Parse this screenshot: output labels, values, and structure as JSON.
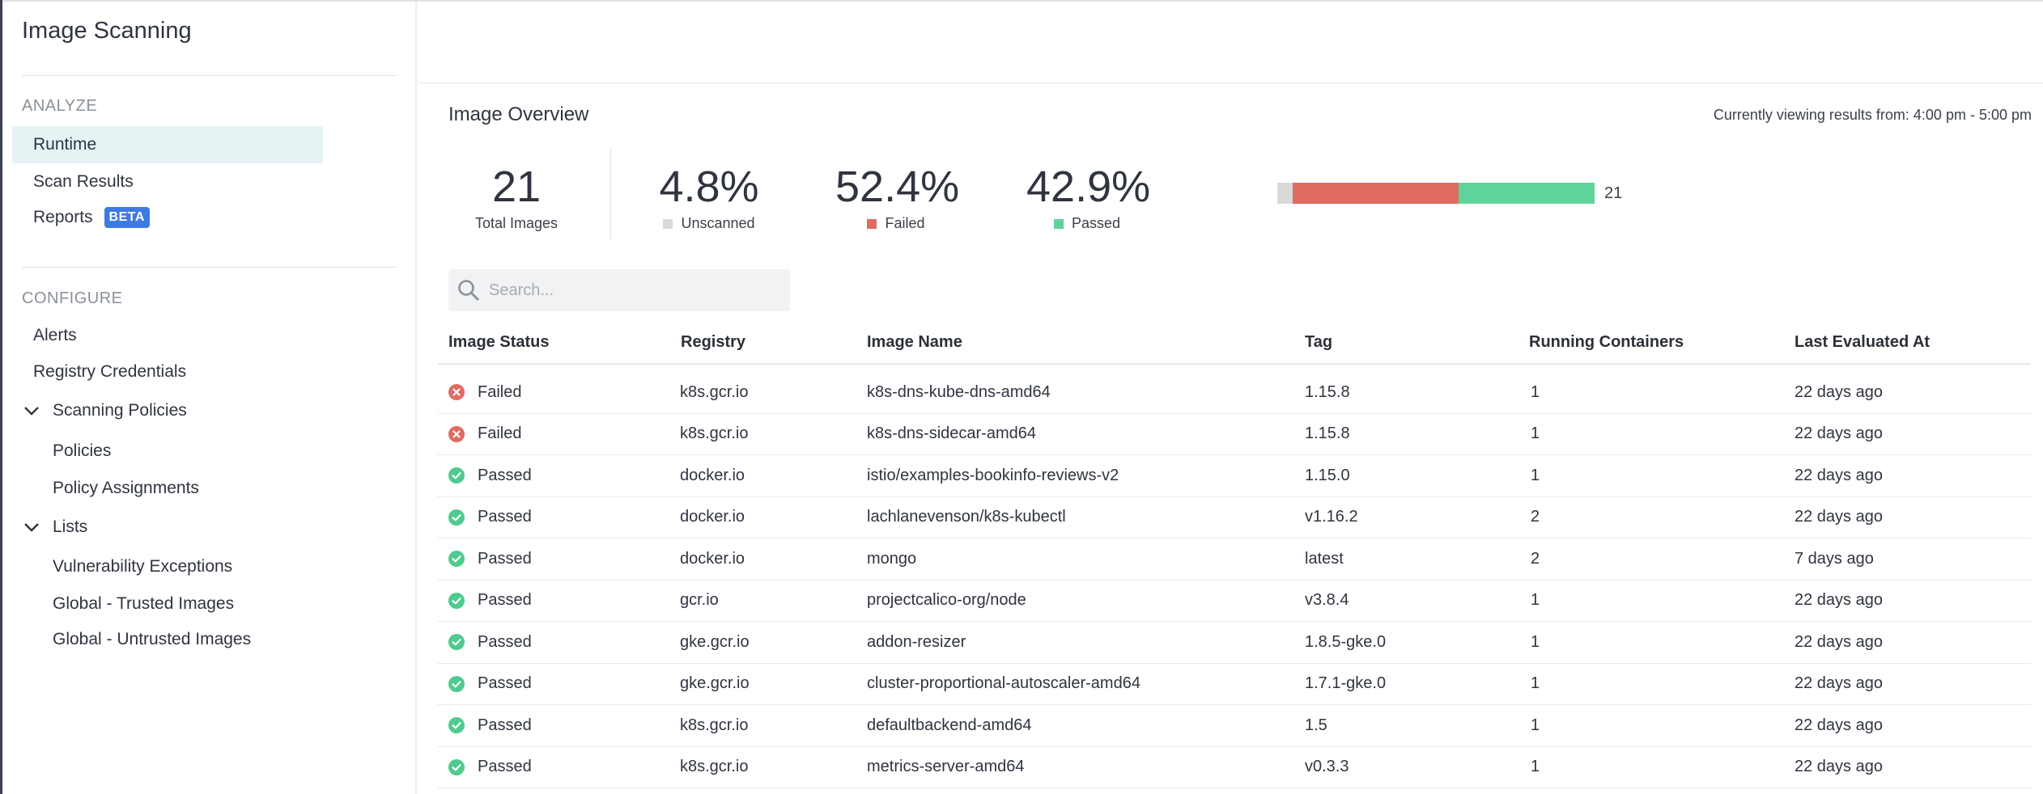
{
  "app": {
    "title": "Image Scanning"
  },
  "sidebar": {
    "analyze_label": "ANALYZE",
    "analyze_items": [
      {
        "label": "Runtime",
        "active": true
      },
      {
        "label": "Scan Results",
        "active": false
      },
      {
        "label": "Reports",
        "active": false,
        "badge": "BETA"
      }
    ],
    "configure_label": "CONFIGURE",
    "configure_items": [
      {
        "label": "Alerts"
      },
      {
        "label": "Registry Credentials"
      }
    ],
    "scanning_policies": {
      "label": "Scanning Policies",
      "children": [
        "Policies",
        "Policy Assignments"
      ]
    },
    "lists": {
      "label": "Lists",
      "children": [
        "Vulnerability Exceptions",
        "Global - Trusted Images",
        "Global - Untrusted Images"
      ]
    }
  },
  "overview": {
    "title": "Image Overview",
    "viewing_text": "Currently viewing results from: 4:00 pm - 5:00 pm",
    "total": {
      "value": "21",
      "label": "Total Images"
    },
    "unscanned": {
      "value": "4.8%",
      "label": "Unscanned",
      "color": "#d9d9d9",
      "fraction": 0.048
    },
    "failed": {
      "value": "52.4%",
      "label": "Failed",
      "color": "#e06b62",
      "fraction": 0.524
    },
    "passed": {
      "value": "42.9%",
      "label": "Passed",
      "color": "#5ed39a",
      "fraction": 0.429
    },
    "bar_count": "21"
  },
  "search": {
    "placeholder": "Search..."
  },
  "table": {
    "columns": [
      "Image Status",
      "Registry",
      "Image Name",
      "Tag",
      "Running Containers",
      "Last Evaluated At"
    ],
    "rows": [
      {
        "status": "Failed",
        "registry": "k8s.gcr.io",
        "image": "k8s-dns-kube-dns-amd64",
        "tag": "1.15.8",
        "containers": "1",
        "evaluated": "22 days ago"
      },
      {
        "status": "Failed",
        "registry": "k8s.gcr.io",
        "image": "k8s-dns-sidecar-amd64",
        "tag": "1.15.8",
        "containers": "1",
        "evaluated": "22 days ago"
      },
      {
        "status": "Passed",
        "registry": "docker.io",
        "image": "istio/examples-bookinfo-reviews-v2",
        "tag": "1.15.0",
        "containers": "1",
        "evaluated": "22 days ago"
      },
      {
        "status": "Passed",
        "registry": "docker.io",
        "image": "lachlanevenson/k8s-kubectl",
        "tag": "v1.16.2",
        "containers": "2",
        "evaluated": "22 days ago"
      },
      {
        "status": "Passed",
        "registry": "docker.io",
        "image": "mongo",
        "tag": "latest",
        "containers": "2",
        "evaluated": "7 days ago"
      },
      {
        "status": "Passed",
        "registry": "gcr.io",
        "image": "projectcalico-org/node",
        "tag": "v3.8.4",
        "containers": "1",
        "evaluated": "22 days ago"
      },
      {
        "status": "Passed",
        "registry": "gke.gcr.io",
        "image": "addon-resizer",
        "tag": "1.8.5-gke.0",
        "containers": "1",
        "evaluated": "22 days ago"
      },
      {
        "status": "Passed",
        "registry": "gke.gcr.io",
        "image": "cluster-proportional-autoscaler-amd64",
        "tag": "1.7.1-gke.0",
        "containers": "1",
        "evaluated": "22 days ago"
      },
      {
        "status": "Passed",
        "registry": "k8s.gcr.io",
        "image": "defaultbackend-amd64",
        "tag": "1.5",
        "containers": "1",
        "evaluated": "22 days ago"
      },
      {
        "status": "Passed",
        "registry": "k8s.gcr.io",
        "image": "metrics-server-amd64",
        "tag": "v0.3.3",
        "containers": "1",
        "evaluated": "22 days ago"
      }
    ]
  }
}
